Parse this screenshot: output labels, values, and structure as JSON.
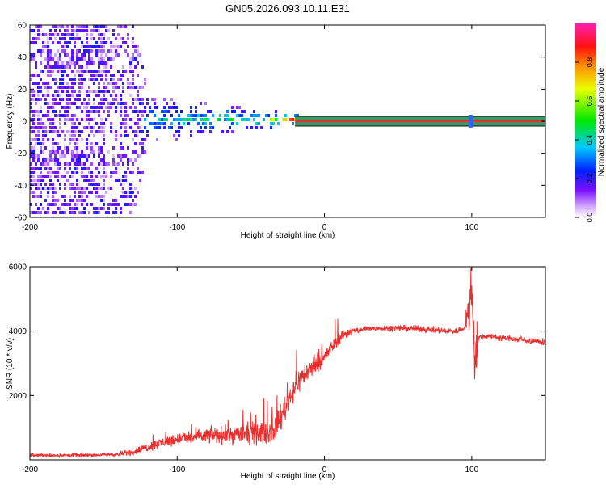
{
  "title": "GN05.2026.093.10.11.E31",
  "colors": {
    "snr_line": "#e8302f",
    "axis": "#000000",
    "center_line": "#e0303a",
    "center_band": "#3a9a62"
  },
  "colorbar": {
    "label": "Normalized spectral amplitude",
    "ticks": [
      "0.0",
      "0.2",
      "0.4",
      "0.6",
      "0.8"
    ],
    "tick_values": [
      0.0,
      0.2,
      0.4,
      0.6,
      0.8
    ],
    "range": [
      0,
      1
    ],
    "colormap": "rainbow (white-violet-blue-cyan-green-yellow-orange-red-magenta)"
  },
  "chart_data": [
    {
      "type": "heatmap",
      "title": "",
      "xlabel": "Height of straight line (km)",
      "ylabel": "Frequency (Hz)",
      "xlim": [
        -200,
        150
      ],
      "ylim": [
        -60,
        60
      ],
      "x_ticks": [
        "-200",
        "-100",
        "0",
        "100"
      ],
      "x_tick_values": [
        -200,
        -100,
        0,
        100
      ],
      "y_ticks": [
        "-60",
        "-40",
        "-20",
        "0",
        "20",
        "40",
        "60"
      ],
      "y_tick_values": [
        -60,
        -40,
        -20,
        0,
        20,
        40,
        60
      ],
      "description_points": [
        {
          "x": -200,
          "spread_hz": 60,
          "amplitude": 0.2
        },
        {
          "x": -130,
          "spread_hz": 60,
          "amplitude": 0.15
        },
        {
          "x": -120,
          "spread_hz": 15,
          "amplitude": 0.35
        },
        {
          "x": -80,
          "spread_hz": 10,
          "amplitude": 0.45
        },
        {
          "x": -40,
          "spread_hz": 6,
          "amplitude": 0.5
        },
        {
          "x": -20,
          "spread_hz": 3,
          "amplitude": 0.9
        },
        {
          "x": 0,
          "spread_hz": 2,
          "amplitude": 1.0
        },
        {
          "x": 100,
          "spread_hz": 2,
          "amplitude": 1.0
        },
        {
          "x": 150,
          "spread_hz": 2,
          "amplitude": 1.0
        }
      ]
    },
    {
      "type": "line",
      "title": "",
      "xlabel": "Height of straight line (km)",
      "ylabel": "SNR (10 * v/v)",
      "xlim": [
        -200,
        150
      ],
      "ylim": [
        0,
        6000
      ],
      "x_ticks": [
        "-200",
        "-100",
        "0",
        "100"
      ],
      "x_tick_values": [
        -200,
        -100,
        0,
        100
      ],
      "y_ticks": [
        "2000",
        "4000",
        "6000"
      ],
      "y_tick_values": [
        2000,
        4000,
        6000
      ],
      "series": [
        {
          "x": [
            -200,
            -180,
            -160,
            -140,
            -130,
            -120,
            -110,
            -100,
            -90,
            -80,
            -70,
            -60,
            -50,
            -40,
            -35,
            -30,
            -25,
            -20,
            -15,
            -10,
            -5,
            0,
            5,
            10,
            15,
            20,
            25,
            30,
            40,
            50,
            60,
            70,
            80,
            90,
            95,
            98,
            100,
            102,
            105,
            110,
            120,
            130,
            140,
            150
          ],
          "values": [
            150,
            140,
            150,
            170,
            250,
            400,
            550,
            650,
            700,
            750,
            780,
            800,
            820,
            850,
            900,
            1300,
            1800,
            2300,
            2600,
            2800,
            3000,
            3200,
            3500,
            3800,
            3950,
            4000,
            4050,
            4080,
            4100,
            4100,
            4080,
            4050,
            4020,
            4000,
            4100,
            4500,
            5200,
            3200,
            3800,
            3850,
            3800,
            3750,
            3700,
            3650
          ]
        }
      ]
    }
  ]
}
